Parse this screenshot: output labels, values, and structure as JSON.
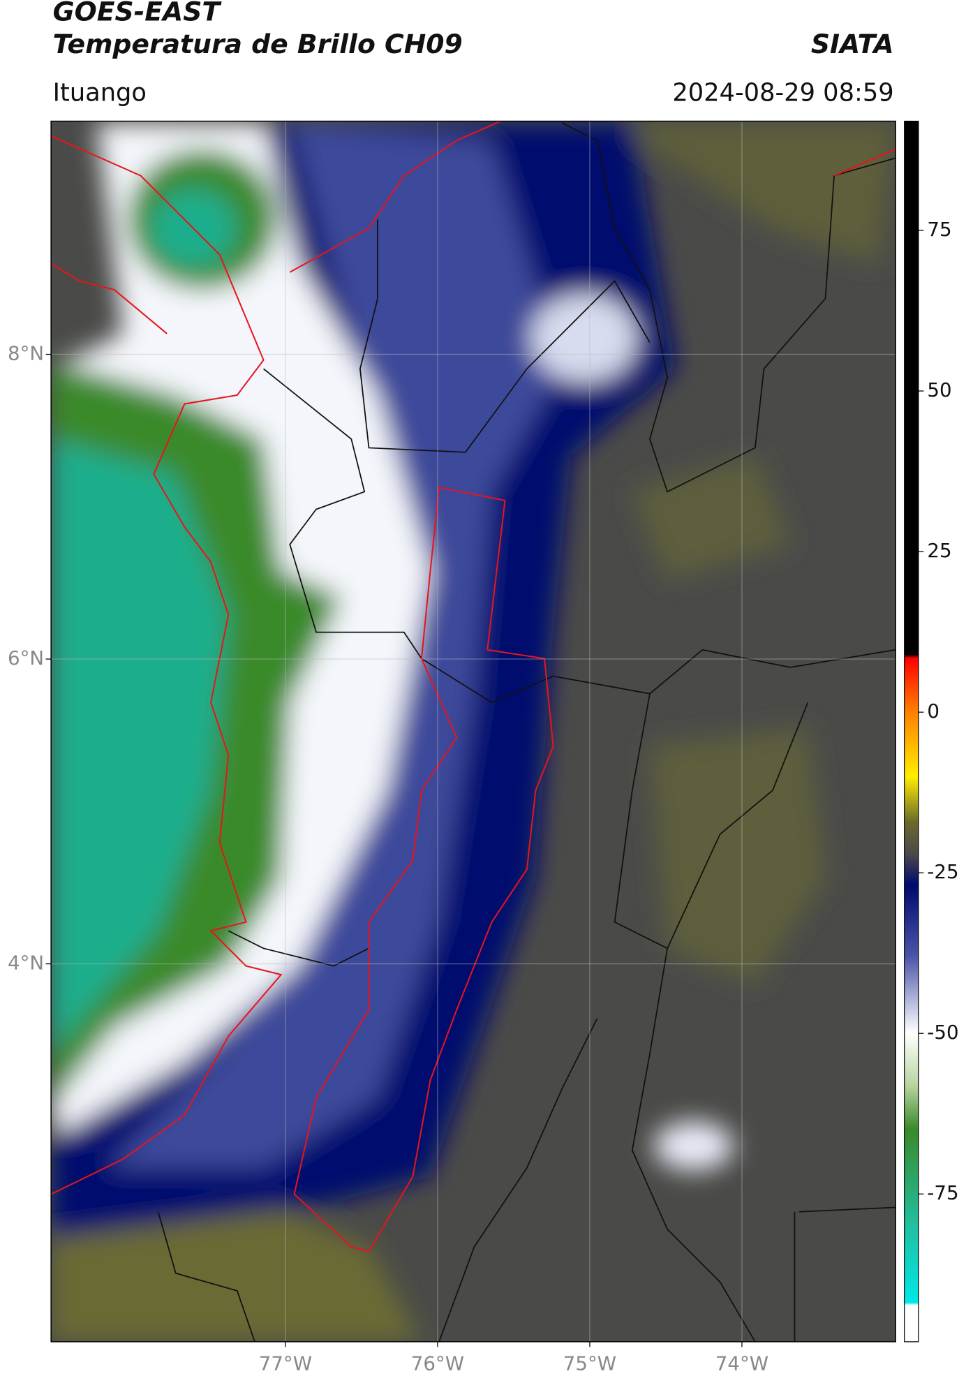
{
  "header": {
    "title": "GOES-EAST",
    "subtitle": "Temperatura de Brillo CH09",
    "source": "SIATA",
    "location": "Ituango",
    "datetime": "2024-08-29 08:59"
  },
  "map": {
    "xlim": [
      -78.54,
      -72.99
    ],
    "ylim": [
      1.52,
      9.53
    ],
    "xticks": [
      {
        "value": -77,
        "label": "77°W"
      },
      {
        "value": -76,
        "label": "76°W"
      },
      {
        "value": -75,
        "label": "75°W"
      },
      {
        "value": -74,
        "label": "74°W"
      }
    ],
    "yticks": [
      {
        "value": 8,
        "label": "8°N"
      },
      {
        "value": 6,
        "label": "6°N"
      },
      {
        "value": 4,
        "label": "4°N"
      }
    ],
    "grid": true
  },
  "colorbar": {
    "lim": [
      -98,
      92
    ],
    "ticks": [
      75,
      50,
      25,
      0,
      -25,
      -50,
      -75
    ]
  }
}
